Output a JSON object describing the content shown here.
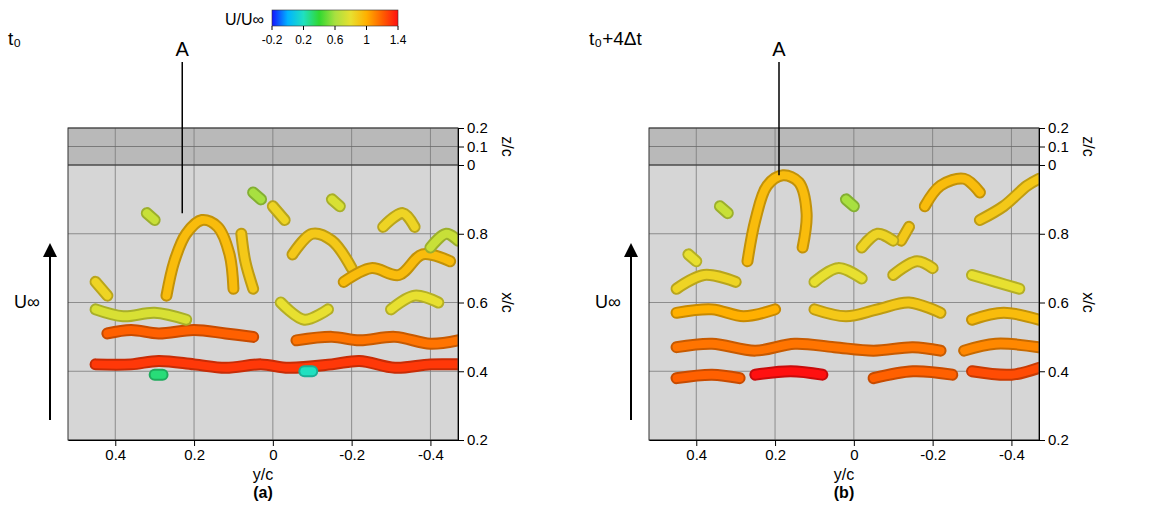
{
  "chart_data": [
    {
      "type": "isosurface",
      "title": "t₀",
      "panel_label": "(a)",
      "xlabel": "y/c",
      "ylabel": "x/c",
      "zlabel": "z/c",
      "xlim": [
        0.52,
        -0.47
      ],
      "xticks": [
        0.4,
        0.2,
        0,
        -0.2,
        -0.4
      ],
      "ylim": [
        0.2,
        1.0
      ],
      "yticks": [
        0.2,
        0.4,
        0.6,
        0.8
      ],
      "zlim": [
        0,
        0.2
      ],
      "zticks": [
        0,
        0.1,
        0.2
      ],
      "grid": true,
      "flow_label": "U∞",
      "annotations": [
        {
          "text": "A",
          "x": 0.23,
          "y": 0.86
        }
      ],
      "colorbar": {
        "label": "U/U∞",
        "range": [
          -0.2,
          1.4
        ],
        "ticks": [
          -0.2,
          0.2,
          0.6,
          1,
          1.4
        ]
      },
      "structures": [
        {
          "x": [
            0.45,
            0.36,
            0.29,
            0.2,
            0.12,
            0.03,
            -0.04,
            -0.15,
            -0.22,
            -0.31,
            -0.4,
            -0.47
          ],
          "y": [
            0.42,
            0.42,
            0.43,
            0.42,
            0.41,
            0.42,
            0.41,
            0.42,
            0.43,
            0.41,
            0.42,
            0.42
          ],
          "value": 1.3
        },
        {
          "x": [
            0.42,
            0.36,
            0.29,
            0.2,
            0.12,
            0.05
          ],
          "y": [
            0.51,
            0.52,
            0.51,
            0.52,
            0.51,
            0.5
          ],
          "value": 1.2
        },
        {
          "x": [
            -0.06,
            -0.15,
            -0.22,
            -0.31,
            -0.4,
            -0.47
          ],
          "y": [
            0.49,
            0.5,
            0.49,
            0.5,
            0.48,
            0.49
          ],
          "value": 1.15
        },
        {
          "x": [
            0.27,
            0.25,
            0.22,
            0.18,
            0.14,
            0.11,
            0.1
          ],
          "y": [
            0.62,
            0.72,
            0.8,
            0.84,
            0.82,
            0.74,
            0.64
          ],
          "value": 0.95
        },
        {
          "x": [
            0.08,
            0.07,
            0.05
          ],
          "y": [
            0.8,
            0.72,
            0.64
          ],
          "value": 0.9
        },
        {
          "x": [
            0.45,
            0.38,
            0.3,
            0.22
          ],
          "y": [
            0.58,
            0.56,
            0.57,
            0.55
          ],
          "value": 0.75
        },
        {
          "x": [
            -0.02,
            -0.08,
            -0.14
          ],
          "y": [
            0.6,
            0.55,
            0.58
          ],
          "value": 0.8
        },
        {
          "x": [
            0.45,
            0.42
          ],
          "y": [
            0.66,
            0.62
          ],
          "value": 0.85
        },
        {
          "x": [
            -0.05,
            -0.1,
            -0.15,
            -0.2
          ],
          "y": [
            0.74,
            0.8,
            0.78,
            0.7
          ],
          "value": 0.9
        },
        {
          "x": [
            -0.18,
            -0.25,
            -0.32,
            -0.38,
            -0.45
          ],
          "y": [
            0.66,
            0.7,
            0.68,
            0.74,
            0.72
          ],
          "value": 0.95
        },
        {
          "x": [
            -0.28,
            -0.33,
            -0.36
          ],
          "y": [
            0.82,
            0.86,
            0.82
          ],
          "value": 0.85
        },
        {
          "x": [
            -0.4,
            -0.44,
            -0.47
          ],
          "y": [
            0.76,
            0.8,
            0.78
          ],
          "value": 0.7
        },
        {
          "x": [
            -0.3,
            -0.36,
            -0.42
          ],
          "y": [
            0.58,
            0.62,
            0.6
          ],
          "value": 0.8
        },
        {
          "x": [
            0.0,
            -0.03
          ],
          "y": [
            0.88,
            0.84
          ],
          "value": 0.85
        },
        {
          "x": [
            0.32,
            0.3
          ],
          "y": [
            0.86,
            0.84
          ],
          "value": 0.7
        },
        {
          "x": [
            0.05,
            0.03
          ],
          "y": [
            0.92,
            0.9
          ],
          "value": 0.6
        },
        {
          "x": [
            -0.15,
            -0.17
          ],
          "y": [
            0.9,
            0.88
          ],
          "value": 0.75
        },
        {
          "x": [
            0.3,
            0.28
          ],
          "y": [
            0.39,
            0.39
          ],
          "value": 0.3
        },
        {
          "x": [
            -0.08,
            -0.1
          ],
          "y": [
            0.4,
            0.4
          ],
          "value": 0.2
        }
      ]
    },
    {
      "type": "isosurface",
      "title": "t₀+4Δt",
      "panel_label": "(b)",
      "xlabel": "y/c",
      "ylabel": "x/c",
      "zlabel": "z/c",
      "xlim": [
        0.52,
        -0.47
      ],
      "xticks": [
        0.4,
        0.2,
        0,
        -0.2,
        -0.4
      ],
      "ylim": [
        0.2,
        1.0
      ],
      "yticks": [
        0.2,
        0.4,
        0.6,
        0.8
      ],
      "zlim": [
        0,
        0.2
      ],
      "zticks": [
        0,
        0.1,
        0.2
      ],
      "grid": true,
      "flow_label": "U∞",
      "annotations": [
        {
          "text": "A",
          "x": 0.19,
          "y": 0.97
        }
      ],
      "structures": [
        {
          "x": [
            0.45,
            0.36,
            0.29
          ],
          "y": [
            0.38,
            0.39,
            0.38
          ],
          "value": 1.2
        },
        {
          "x": [
            0.25,
            0.16,
            0.08
          ],
          "y": [
            0.39,
            0.4,
            0.39
          ],
          "value": 1.4
        },
        {
          "x": [
            -0.05,
            -0.15,
            -0.25
          ],
          "y": [
            0.38,
            0.4,
            0.39
          ],
          "value": 1.2
        },
        {
          "x": [
            -0.3,
            -0.4,
            -0.47
          ],
          "y": [
            0.4,
            0.39,
            0.41
          ],
          "value": 1.25
        },
        {
          "x": [
            0.45,
            0.36,
            0.25,
            0.15,
            0.05,
            -0.05,
            -0.15,
            -0.22
          ],
          "y": [
            0.47,
            0.48,
            0.46,
            0.48,
            0.47,
            0.46,
            0.47,
            0.46
          ],
          "value": 1.15
        },
        {
          "x": [
            -0.28,
            -0.36,
            -0.47
          ],
          "y": [
            0.46,
            0.48,
            0.47
          ],
          "value": 1.1
        },
        {
          "x": [
            0.45,
            0.36,
            0.28,
            0.2
          ],
          "y": [
            0.57,
            0.58,
            0.56,
            0.58
          ],
          "value": 1.0
        },
        {
          "x": [
            0.1,
            0.02,
            -0.06,
            -0.14,
            -0.22
          ],
          "y": [
            0.58,
            0.56,
            0.58,
            0.6,
            0.57
          ],
          "value": 0.9
        },
        {
          "x": [
            -0.3,
            -0.38,
            -0.47
          ],
          "y": [
            0.55,
            0.57,
            0.55
          ],
          "value": 0.95
        },
        {
          "x": [
            0.45,
            0.38,
            0.3
          ],
          "y": [
            0.64,
            0.68,
            0.66
          ],
          "value": 0.85
        },
        {
          "x": [
            0.1,
            0.04,
            -0.02
          ],
          "y": [
            0.66,
            0.7,
            0.67
          ],
          "value": 0.8
        },
        {
          "x": [
            -0.1,
            -0.16,
            -0.2
          ],
          "y": [
            0.68,
            0.72,
            0.7
          ],
          "value": 0.85
        },
        {
          "x": [
            -0.3,
            -0.36,
            -0.42
          ],
          "y": [
            0.68,
            0.66,
            0.64
          ],
          "value": 0.8
        },
        {
          "x": [
            0.27,
            0.25,
            0.22,
            0.18,
            0.14,
            0.12,
            0.13
          ],
          "y": [
            0.72,
            0.84,
            0.94,
            0.97,
            0.95,
            0.86,
            0.76
          ],
          "value": 0.95
        },
        {
          "x": [
            -0.18,
            -0.22,
            -0.28,
            -0.32
          ],
          "y": [
            0.88,
            0.94,
            0.96,
            0.92
          ],
          "value": 0.95
        },
        {
          "x": [
            -0.32,
            -0.38,
            -0.44,
            -0.47
          ],
          "y": [
            0.84,
            0.88,
            0.94,
            0.96
          ],
          "value": 0.9
        },
        {
          "x": [
            -0.14,
            -0.12
          ],
          "y": [
            0.82,
            0.78
          ],
          "value": 0.9
        },
        {
          "x": [
            -0.02,
            -0.06,
            -0.1
          ],
          "y": [
            0.76,
            0.8,
            0.78
          ],
          "value": 0.85
        },
        {
          "x": [
            0.34,
            0.32
          ],
          "y": [
            0.88,
            0.86
          ],
          "value": 0.7
        },
        {
          "x": [
            0.02,
            0.0
          ],
          "y": [
            0.9,
            0.88
          ],
          "value": 0.6
        },
        {
          "x": [
            0.42,
            0.4
          ],
          "y": [
            0.74,
            0.72
          ],
          "value": 0.8
        }
      ]
    }
  ]
}
